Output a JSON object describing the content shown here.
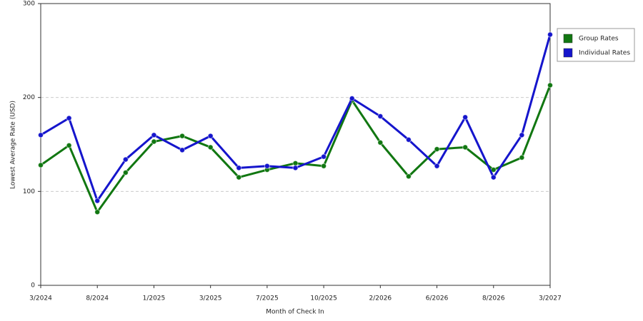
{
  "chart_data": {
    "type": "line",
    "x_label": "Month of Check In",
    "y_label": "Lowest Average Rate (USD)",
    "categories": [
      "3/2024",
      null,
      "8/2024",
      null,
      "1/2025",
      null,
      "3/2025",
      null,
      "7/2025",
      null,
      "10/2025",
      null,
      "2/2026",
      null,
      "6/2026",
      null,
      "8/2026",
      null,
      "3/2027"
    ],
    "series": [
      {
        "name": "Group Rates",
        "color": "#117711",
        "values": [
          128,
          149,
          78,
          120,
          153,
          159,
          147,
          115,
          123,
          130,
          127,
          197,
          152,
          116,
          145,
          147,
          123,
          136,
          213
        ]
      },
      {
        "name": "Individual Rates",
        "color": "#1515cc",
        "values": [
          160,
          178,
          90,
          134,
          160,
          144,
          159,
          125,
          127,
          125,
          137,
          199,
          180,
          155,
          127,
          179,
          115,
          160,
          267
        ]
      }
    ],
    "ylim": [
      0,
      300
    ],
    "yticks": [
      0,
      100,
      200,
      300
    ],
    "grid": true,
    "legend": "right"
  }
}
